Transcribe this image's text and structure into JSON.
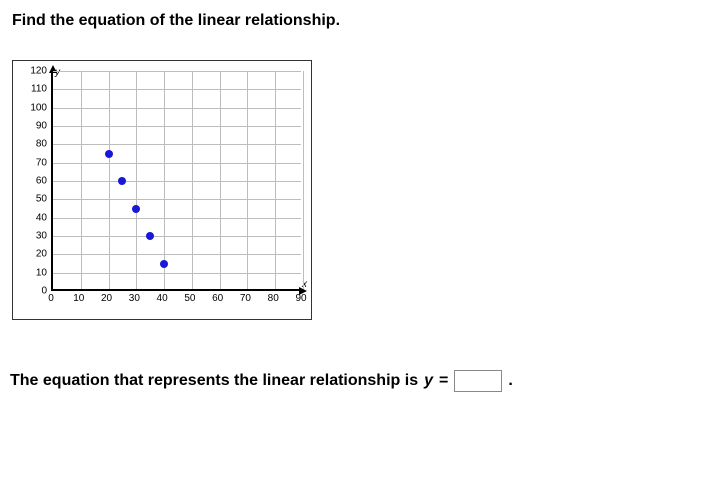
{
  "question": "Find the equation of the linear relationship.",
  "chart": {
    "type": "scatter",
    "xlim": [
      0,
      90
    ],
    "ylim": [
      0,
      120
    ],
    "xtick_step": 10,
    "ytick_step": 10,
    "xticks": [
      0,
      10,
      20,
      30,
      40,
      50,
      60,
      70,
      80,
      90
    ],
    "yticks": [
      0,
      10,
      20,
      30,
      40,
      50,
      60,
      70,
      80,
      90,
      100,
      110,
      120
    ],
    "x_axis_label": "x",
    "y_axis_label": "y",
    "grid_color": "#bdbdbd",
    "axis_color": "#000000",
    "background_color": "#ffffff",
    "point_color": "#1818d8",
    "point_radius": 4,
    "points": [
      {
        "x": 20,
        "y": 75
      },
      {
        "x": 25,
        "y": 60
      },
      {
        "x": 30,
        "y": 45
      },
      {
        "x": 35,
        "y": 30
      },
      {
        "x": 40,
        "y": 15
      }
    ]
  },
  "answer": {
    "prefix": "The equation that represents the linear relationship is ",
    "var": "y",
    "equals": " = ",
    "value": "",
    "suffix": "."
  }
}
